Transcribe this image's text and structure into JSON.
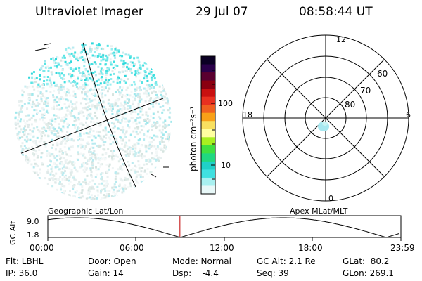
{
  "header": {
    "title": "Ultraviolet Imager",
    "date": "29 Jul 07",
    "time": "08:58:44 UT"
  },
  "colorbar": {
    "label": "photon cm⁻²s⁻¹",
    "ticks": [
      "100",
      "10"
    ],
    "colors": [
      "#0b0024",
      "#2a004a",
      "#5a0030",
      "#8a0010",
      "#c81010",
      "#e83020",
      "#f06020",
      "#f8a018",
      "#f8e060",
      "#ffffa0",
      "#a8f020",
      "#40e040",
      "#20d880",
      "#20d0c8",
      "#40e0e0",
      "#a8f0f0",
      "#e8f8f8"
    ]
  },
  "polar_plot": {
    "mlt_labels": {
      "top": "12",
      "left": "18",
      "right": "6",
      "bottom": "0"
    },
    "lat_labels": [
      "60",
      "70",
      "80"
    ]
  },
  "timeline": {
    "ylabel": "GC Alt",
    "yticks": [
      "9.0",
      "1.8"
    ],
    "left_label": "Geographic Lat/Lon",
    "right_label": "Apex  MLat/MLT",
    "xticks": [
      "00:00",
      "06:00",
      "12:00",
      "18:00",
      "23:59"
    ],
    "marker_time_hours": 8.98
  },
  "info": {
    "flt": "Flt: LBHL",
    "ip": "IP: 36.0",
    "door": "Door: Open",
    "gain": "Gain: 14",
    "mode": "Mode: Normal",
    "dsp": "Dsp:    -4.4",
    "gc_alt": "GC Alt: 2.1 Re",
    "seq": "Seq: 39",
    "glat": "GLat:  80.2",
    "glon": "GLon: 269.1"
  }
}
